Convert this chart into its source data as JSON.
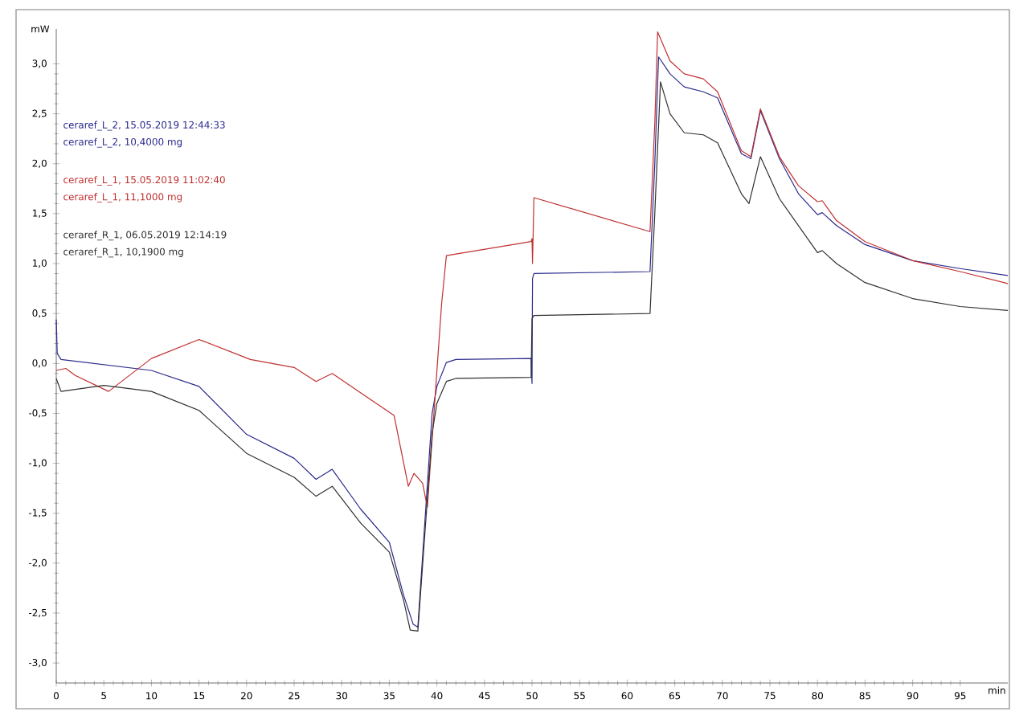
{
  "chart_data": {
    "type": "line",
    "ylabel": "mW",
    "xlabel": "min",
    "xlim": [
      0,
      100
    ],
    "ylim": [
      -3.2,
      3.35
    ],
    "xticks": [
      0,
      5,
      10,
      15,
      20,
      25,
      30,
      35,
      40,
      45,
      50,
      55,
      60,
      65,
      70,
      75,
      80,
      85,
      90,
      95
    ],
    "yticks": [
      {
        "value": -3,
        "label": "-3,0"
      },
      {
        "value": -2.5,
        "label": "-2,5"
      },
      {
        "value": -2,
        "label": "-2,0"
      },
      {
        "value": -1.5,
        "label": "-1,5"
      },
      {
        "value": -1,
        "label": "-1,0"
      },
      {
        "value": -0.5,
        "label": "-0,5"
      },
      {
        "value": 0,
        "label": "0,0"
      },
      {
        "value": 0.5,
        "label": "0,5"
      },
      {
        "value": 1,
        "label": "1,0"
      },
      {
        "value": 1.5,
        "label": "1,5"
      },
      {
        "value": 2,
        "label": "2,0"
      },
      {
        "value": 2.5,
        "label": "2,5"
      },
      {
        "value": 3,
        "label": "3,0"
      }
    ],
    "grid": false,
    "marker": "none",
    "line_style": "solid",
    "annotations": [
      "ceraref_L_2, 10,4000 mg",
      "ceraref_L_1, 11,1000 mg",
      "ceraref_R_1, 10,1900 mg"
    ],
    "series": [
      {
        "name": "ceraref_L_2, 15.05.2019 12:44:33",
        "color": "#2a2a8c",
        "x": [
          0,
          0.1,
          0.5,
          10,
          15,
          20,
          25,
          27.3,
          29,
          32,
          35,
          36.5,
          37.5,
          38,
          39.5,
          40,
          41,
          42,
          49.9,
          50,
          50.05,
          50.2,
          62.4,
          62.9,
          63.3,
          64.5,
          66,
          68,
          69.5,
          72,
          73,
          74,
          76,
          78,
          80,
          80.5,
          82,
          85,
          90,
          95,
          100
        ],
        "values": [
          0.44,
          0.1,
          0.04,
          -0.07,
          -0.23,
          -0.71,
          -0.95,
          -1.16,
          -1.06,
          -1.46,
          -1.79,
          -2.32,
          -2.61,
          -2.64,
          -0.5,
          -0.23,
          0.01,
          0.04,
          0.05,
          -0.2,
          0.85,
          0.9,
          0.92,
          2.0,
          3.07,
          2.9,
          2.77,
          2.72,
          2.66,
          2.1,
          2.05,
          2.53,
          2.05,
          1.7,
          1.49,
          1.51,
          1.38,
          1.19,
          1.03,
          0.95,
          0.88
        ]
      },
      {
        "name": "ceraref_L_1, 15.05.2019 11:02:40",
        "color": "#c03030",
        "x": [
          0,
          1,
          2,
          5.5,
          10,
          15,
          20.4,
          25,
          27.3,
          29,
          33,
          35.5,
          37,
          37.6,
          38.5,
          39,
          40.5,
          41,
          49.9,
          50,
          50.05,
          50.2,
          62.4,
          62.9,
          63.2,
          64.5,
          66,
          68,
          69.5,
          72,
          73,
          74,
          76,
          78,
          80,
          80.5,
          82,
          85,
          90,
          95,
          100
        ],
        "values": [
          -0.07,
          -0.05,
          -0.12,
          -0.28,
          0.05,
          0.24,
          0.04,
          -0.04,
          -0.18,
          -0.1,
          -0.36,
          -0.52,
          -1.23,
          -1.1,
          -1.2,
          -1.44,
          0.6,
          1.08,
          1.22,
          1.25,
          1.0,
          1.66,
          1.32,
          2.4,
          3.32,
          3.03,
          2.9,
          2.85,
          2.72,
          2.13,
          2.07,
          2.55,
          2.07,
          1.78,
          1.62,
          1.63,
          1.43,
          1.22,
          1.03,
          0.92,
          0.8
        ]
      },
      {
        "name": "ceraref_R_1, 06.05.2019 12:14:19",
        "color": "#303030",
        "x": [
          0,
          0.5,
          5,
          10,
          15,
          20,
          25,
          27.3,
          29,
          32,
          35,
          36.5,
          37.2,
          38,
          39.5,
          40,
          41,
          42,
          49.9,
          50,
          50.2,
          62.4,
          62.9,
          63.5,
          64.5,
          66,
          68,
          69.5,
          72,
          72.8,
          74,
          76,
          78,
          80,
          80.5,
          82,
          85,
          90,
          95,
          100
        ],
        "values": [
          -0.15,
          -0.28,
          -0.22,
          -0.28,
          -0.47,
          -0.9,
          -1.14,
          -1.33,
          -1.23,
          -1.6,
          -1.89,
          -2.37,
          -2.67,
          -2.68,
          -0.7,
          -0.4,
          -0.18,
          -0.15,
          -0.14,
          0.45,
          0.48,
          0.5,
          1.5,
          2.82,
          2.5,
          2.31,
          2.29,
          2.21,
          1.7,
          1.6,
          2.07,
          1.65,
          1.38,
          1.11,
          1.13,
          1.0,
          0.81,
          0.65,
          0.57,
          0.53
        ]
      }
    ]
  }
}
